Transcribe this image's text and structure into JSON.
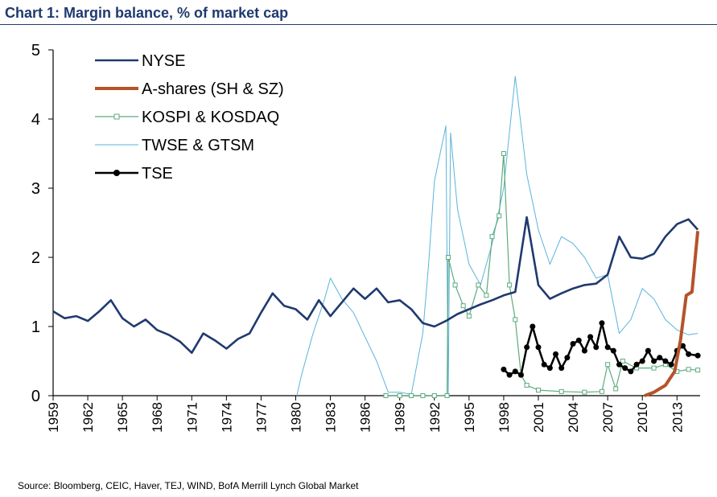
{
  "title": "Chart 1: Margin balance, % of market cap",
  "source": "Source: Bloomberg, CEIC, Haver, TEJ, WIND, BofA Merrill Lynch Global Market",
  "chart_data": {
    "type": "line",
    "title": "Chart 1: Margin balance, % of market cap",
    "xlabel": "",
    "ylabel": "",
    "xlim": [
      1959,
      2015
    ],
    "ylim": [
      0,
      5
    ],
    "yticks": [
      0,
      1,
      2,
      3,
      4,
      5
    ],
    "xtick_labels": [
      "1959",
      "1962",
      "1965",
      "1968",
      "1971",
      "1974",
      "1977",
      "1980",
      "1983",
      "1986",
      "1989",
      "1992",
      "1995",
      "1998",
      "2001",
      "2004",
      "2007",
      "2010",
      "2013"
    ],
    "grid": false,
    "legend_position": "top-left",
    "series": [
      {
        "name": "NYSE",
        "color": "#1f3a6e",
        "style": "line-thick",
        "points": [
          [
            1959,
            1.22
          ],
          [
            1960,
            1.12
          ],
          [
            1961,
            1.15
          ],
          [
            1962,
            1.08
          ],
          [
            1963,
            1.22
          ],
          [
            1964,
            1.38
          ],
          [
            1965,
            1.12
          ],
          [
            1966,
            1.0
          ],
          [
            1967,
            1.1
          ],
          [
            1968,
            0.95
          ],
          [
            1969,
            0.88
          ],
          [
            1970,
            0.78
          ],
          [
            1971,
            0.62
          ],
          [
            1972,
            0.9
          ],
          [
            1973,
            0.8
          ],
          [
            1974,
            0.68
          ],
          [
            1975,
            0.82
          ],
          [
            1976,
            0.9
          ],
          [
            1977,
            1.2
          ],
          [
            1978,
            1.48
          ],
          [
            1979,
            1.3
          ],
          [
            1980,
            1.25
          ],
          [
            1981,
            1.1
          ],
          [
            1982,
            1.38
          ],
          [
            1983,
            1.15
          ],
          [
            1984,
            1.35
          ],
          [
            1985,
            1.55
          ],
          [
            1986,
            1.4
          ],
          [
            1987,
            1.55
          ],
          [
            1988,
            1.35
          ],
          [
            1989,
            1.38
          ],
          [
            1990,
            1.25
          ],
          [
            1991,
            1.05
          ],
          [
            1992,
            1.0
          ],
          [
            1993,
            1.08
          ],
          [
            1994,
            1.18
          ],
          [
            1995,
            1.25
          ],
          [
            1996,
            1.32
          ],
          [
            1997,
            1.38
          ],
          [
            1998,
            1.45
          ],
          [
            1999,
            1.5
          ],
          [
            2000,
            2.58
          ],
          [
            2001,
            1.6
          ],
          [
            2002,
            1.4
          ],
          [
            2003,
            1.48
          ],
          [
            2004,
            1.55
          ],
          [
            2005,
            1.6
          ],
          [
            2006,
            1.62
          ],
          [
            2007,
            1.75
          ],
          [
            2008,
            2.3
          ],
          [
            2009,
            2.0
          ],
          [
            2010,
            1.98
          ],
          [
            2011,
            2.05
          ],
          [
            2012,
            2.3
          ],
          [
            2013,
            2.48
          ],
          [
            2014,
            2.55
          ],
          [
            2014.8,
            2.4
          ]
        ]
      },
      {
        "name": "A-shares (SH & SZ)",
        "color": "#b5532a",
        "style": "line-bold",
        "points": [
          [
            2010.2,
            0.0
          ],
          [
            2011,
            0.05
          ],
          [
            2012,
            0.15
          ],
          [
            2012.8,
            0.35
          ],
          [
            2013.3,
            0.8
          ],
          [
            2013.8,
            1.45
          ],
          [
            2014.3,
            1.5
          ],
          [
            2014.8,
            2.38
          ]
        ]
      },
      {
        "name": "KOSPI & KOSDAQ",
        "color": "#5cab7d",
        "style": "line-square-markers",
        "points": [
          [
            1987.8,
            0.0
          ],
          [
            1989,
            0.0
          ],
          [
            1990,
            0.0
          ],
          [
            1991,
            0.0
          ],
          [
            1992,
            0.0
          ],
          [
            1993.1,
            0.0
          ],
          [
            1993.2,
            2.0
          ],
          [
            1993.8,
            1.6
          ],
          [
            1994.5,
            1.3
          ],
          [
            1995,
            1.15
          ],
          [
            1995.8,
            1.6
          ],
          [
            1996.5,
            1.45
          ],
          [
            1997,
            2.3
          ],
          [
            1997.6,
            2.6
          ],
          [
            1998,
            3.5
          ],
          [
            1998.5,
            1.6
          ],
          [
            1999,
            1.1
          ],
          [
            1999.5,
            0.3
          ],
          [
            2000,
            0.15
          ],
          [
            2001,
            0.08
          ],
          [
            2003,
            0.06
          ],
          [
            2005,
            0.05
          ],
          [
            2006.5,
            0.06
          ],
          [
            2007,
            0.45
          ],
          [
            2007.7,
            0.1
          ],
          [
            2008.3,
            0.5
          ],
          [
            2009.5,
            0.4
          ],
          [
            2011,
            0.4
          ],
          [
            2012,
            0.45
          ],
          [
            2013,
            0.35
          ],
          [
            2014,
            0.38
          ],
          [
            2014.8,
            0.37
          ]
        ]
      },
      {
        "name": "TWSE & GTSM",
        "color": "#5ab4dc",
        "style": "line-thin",
        "points": [
          [
            1980.1,
            0.0
          ],
          [
            1980.5,
            0.3
          ],
          [
            1981.5,
            0.9
          ],
          [
            1982.5,
            1.4
          ],
          [
            1983,
            1.7
          ],
          [
            1984,
            1.4
          ],
          [
            1985,
            1.2
          ],
          [
            1986,
            0.85
          ],
          [
            1987,
            0.5
          ],
          [
            1988,
            0.05
          ],
          [
            1989,
            0.05
          ],
          [
            1990,
            0.02
          ],
          [
            1991,
            0.9
          ],
          [
            1991.5,
            1.9
          ],
          [
            1992,
            3.1
          ],
          [
            1993,
            3.9
          ],
          [
            1993.2,
            0.0
          ],
          [
            1993.4,
            3.8
          ],
          [
            1994,
            2.7
          ],
          [
            1995,
            1.9
          ],
          [
            1996,
            1.6
          ],
          [
            1997,
            2.2
          ],
          [
            1998,
            3.0
          ],
          [
            1999,
            4.62
          ],
          [
            2000,
            3.2
          ],
          [
            2001,
            2.4
          ],
          [
            2002,
            1.9
          ],
          [
            2003,
            2.3
          ],
          [
            2004,
            2.2
          ],
          [
            2005,
            2.0
          ],
          [
            2006,
            1.7
          ],
          [
            2007,
            1.75
          ],
          [
            2008,
            0.9
          ],
          [
            2009,
            1.1
          ],
          [
            2010,
            1.55
          ],
          [
            2011,
            1.4
          ],
          [
            2012,
            1.1
          ],
          [
            2013,
            0.95
          ],
          [
            2014,
            0.88
          ],
          [
            2014.8,
            0.9
          ]
        ]
      },
      {
        "name": "TSE",
        "color": "#000000",
        "style": "line-dot-markers",
        "points": [
          [
            1998,
            0.38
          ],
          [
            1998.5,
            0.3
          ],
          [
            1999,
            0.35
          ],
          [
            1999.5,
            0.3
          ],
          [
            2000,
            0.7
          ],
          [
            2000.5,
            1.0
          ],
          [
            2001,
            0.7
          ],
          [
            2001.5,
            0.45
          ],
          [
            2002,
            0.4
          ],
          [
            2002.5,
            0.6
          ],
          [
            2003,
            0.4
          ],
          [
            2003.5,
            0.55
          ],
          [
            2004,
            0.75
          ],
          [
            2004.5,
            0.8
          ],
          [
            2005,
            0.65
          ],
          [
            2005.5,
            0.85
          ],
          [
            2006,
            0.7
          ],
          [
            2006.5,
            1.05
          ],
          [
            2007,
            0.7
          ],
          [
            2007.5,
            0.65
          ],
          [
            2008,
            0.45
          ],
          [
            2008.5,
            0.4
          ],
          [
            2009,
            0.35
          ],
          [
            2009.5,
            0.45
          ],
          [
            2010,
            0.5
          ],
          [
            2010.5,
            0.65
          ],
          [
            2011,
            0.5
          ],
          [
            2011.5,
            0.55
          ],
          [
            2012,
            0.5
          ],
          [
            2012.5,
            0.45
          ],
          [
            2013,
            0.65
          ],
          [
            2013.5,
            0.72
          ],
          [
            2014,
            0.6
          ],
          [
            2014.8,
            0.58
          ]
        ]
      }
    ]
  }
}
